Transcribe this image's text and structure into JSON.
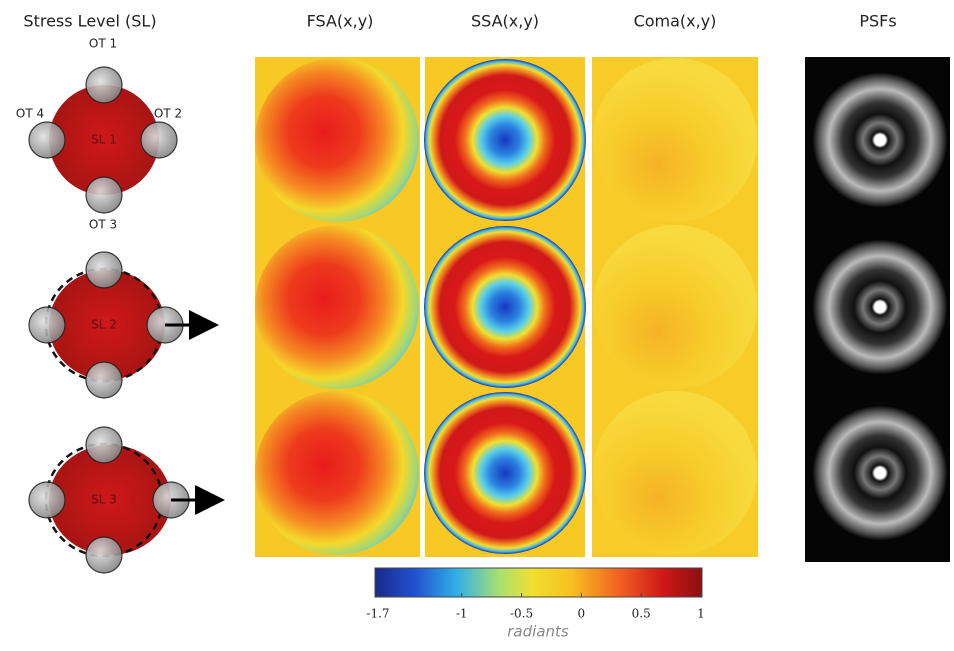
{
  "titles": [
    "Stress Level (SL)",
    "FSA(x,y)",
    "SSA(x,y)",
    "Coma(x,y)",
    "PSFs"
  ],
  "probes": [
    "OT 1",
    "OT 2",
    "OT 3",
    "OT 4"
  ],
  "stress_levels": [
    "SL 1",
    "SL 2",
    "SL 3"
  ],
  "colorbar": {
    "ticks": [
      -1.7,
      -1,
      -0.5,
      0,
      0.5,
      1
    ],
    "label": "radiants"
  }
}
